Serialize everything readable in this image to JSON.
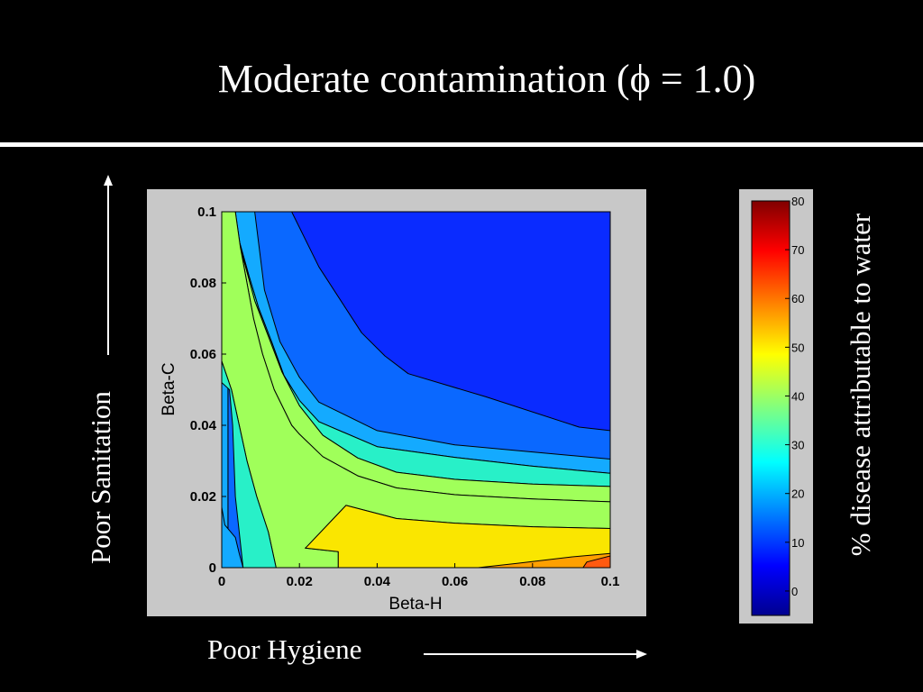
{
  "slide": {
    "title": "Moderate contamination (ϕ = 1.0)"
  },
  "y_axis_caption": "Poor Sanitation",
  "x_axis_caption": "Poor Hygiene",
  "colorbar_caption": "% disease attributable to water",
  "chart_data": {
    "type": "contour",
    "xlabel": "Beta-H",
    "ylabel": "Beta-C",
    "xlim": [
      0,
      0.1
    ],
    "ylim": [
      0,
      0.1
    ],
    "xticks": [
      "0",
      "0.02",
      "0.04",
      "0.06",
      "0.08",
      "0.1"
    ],
    "yticks": [
      "0",
      "0.02",
      "0.04",
      "0.06",
      "0.08",
      "0.1"
    ],
    "colorbar": {
      "min": -5,
      "max": 80,
      "ticks": [
        "0",
        "10",
        "20",
        "30",
        "40",
        "50",
        "60",
        "70",
        "80"
      ]
    },
    "colors": {
      "level_0_5": "#0a2bff",
      "level_5_10": "#0a68ff",
      "level_10_20": "#14aaff",
      "level_20_30": "#28f0c8",
      "level_30_40": "#a0ff5a",
      "level_40_50": "#fae600",
      "level_50_60": "#ffa000",
      "level_60_70": "#ff5a10",
      "axes_frame": "#c8c8c8"
    },
    "regions": [
      {
        "name": "level-5-10",
        "fill": "level_5_10",
        "points": [
          [
            0.0016,
            0.1
          ],
          [
            0.1,
            0.1
          ],
          [
            0.1,
            0.0
          ],
          [
            0.0016,
            0.0
          ]
        ]
      },
      {
        "name": "level-10-20",
        "fill": "level_10_20",
        "points": [
          [
            0.0,
            0.1
          ],
          [
            0.0016,
            0.1
          ],
          [
            0.0016,
            0.0
          ],
          [
            0.0,
            0.0
          ]
        ]
      },
      {
        "name": "level-0-5",
        "fill": "level_0_5",
        "points": [
          [
            0.018,
            0.1
          ],
          [
            0.1,
            0.1
          ],
          [
            0.1,
            0.0385
          ],
          [
            0.092,
            0.0395
          ],
          [
            0.068,
            0.048
          ],
          [
            0.048,
            0.0545
          ],
          [
            0.042,
            0.0595
          ],
          [
            0.036,
            0.066
          ],
          [
            0.025,
            0.0845
          ]
        ]
      },
      {
        "name": "level-10-20",
        "fill": "level_10_20",
        "points": [
          [
            0.0085,
            0.1
          ],
          [
            0.0018,
            0.1
          ],
          [
            0.0042,
            0.093
          ],
          [
            0.007,
            0.082
          ],
          [
            0.0095,
            0.073
          ],
          [
            0.013,
            0.063
          ],
          [
            0.016,
            0.054
          ],
          [
            0.02,
            0.047
          ],
          [
            0.025,
            0.041
          ],
          [
            0.04,
            0.034
          ],
          [
            0.06,
            0.031
          ],
          [
            0.08,
            0.0285
          ],
          [
            0.1,
            0.0265
          ],
          [
            0.1,
            0.0305
          ],
          [
            0.08,
            0.0325
          ],
          [
            0.06,
            0.0345
          ],
          [
            0.04,
            0.0385
          ],
          [
            0.025,
            0.0465
          ],
          [
            0.02,
            0.0535
          ],
          [
            0.015,
            0.0635
          ],
          [
            0.011,
            0.078
          ]
        ]
      },
      {
        "name": "level-20-30",
        "fill": "level_20_30",
        "points": [
          [
            0.0018,
            0.1
          ],
          [
            0.0035,
            0.1
          ],
          [
            0.004,
            0.093
          ],
          [
            0.006,
            0.085
          ],
          [
            0.0085,
            0.075
          ],
          [
            0.012,
            0.065
          ],
          [
            0.0155,
            0.055
          ],
          [
            0.02,
            0.0455
          ],
          [
            0.026,
            0.0372
          ],
          [
            0.035,
            0.0308
          ],
          [
            0.045,
            0.0268
          ],
          [
            0.06,
            0.0248
          ],
          [
            0.08,
            0.0235
          ],
          [
            0.1,
            0.0228
          ],
          [
            0.1,
            0.0265
          ],
          [
            0.08,
            0.0285
          ],
          [
            0.06,
            0.031
          ],
          [
            0.04,
            0.034
          ],
          [
            0.025,
            0.041
          ],
          [
            0.02,
            0.047
          ],
          [
            0.016,
            0.054
          ],
          [
            0.013,
            0.063
          ],
          [
            0.0095,
            0.073
          ],
          [
            0.007,
            0.082
          ],
          [
            0.0042,
            0.093
          ]
        ]
      },
      {
        "name": "level-30-40",
        "fill": "level_30_40",
        "points": [
          [
            0.0035,
            0.1
          ],
          [
            0.0048,
            0.09
          ],
          [
            0.0065,
            0.08
          ],
          [
            0.0082,
            0.07
          ],
          [
            0.0105,
            0.06
          ],
          [
            0.0135,
            0.05
          ],
          [
            0.018,
            0.04
          ],
          [
            0.02,
            0.0375
          ],
          [
            0.026,
            0.0312
          ],
          [
            0.035,
            0.0258
          ],
          [
            0.045,
            0.0224
          ],
          [
            0.06,
            0.0205
          ],
          [
            0.08,
            0.0193
          ],
          [
            0.1,
            0.0185
          ],
          [
            0.1,
            0.0228
          ],
          [
            0.08,
            0.0235
          ],
          [
            0.06,
            0.0248
          ],
          [
            0.045,
            0.0268
          ],
          [
            0.035,
            0.0308
          ],
          [
            0.026,
            0.0372
          ],
          [
            0.02,
            0.0455
          ],
          [
            0.0155,
            0.055
          ],
          [
            0.012,
            0.065
          ],
          [
            0.0085,
            0.075
          ],
          [
            0.006,
            0.085
          ],
          [
            0.004,
            0.093
          ]
        ]
      },
      {
        "name": "level-30-40",
        "fill": "level_30_40",
        "points": [
          [
            0.0,
            0.058
          ],
          [
            0.0025,
            0.05
          ],
          [
            0.0045,
            0.04
          ],
          [
            0.0065,
            0.03
          ],
          [
            0.009,
            0.02
          ],
          [
            0.012,
            0.01
          ],
          [
            0.014,
            0.0
          ],
          [
            0.03,
            0.0
          ],
          [
            0.03,
            0.0045
          ],
          [
            0.0215,
            0.0055
          ],
          [
            0.022,
            0.006
          ],
          [
            0.032,
            0.0175
          ],
          [
            0.045,
            0.0138
          ],
          [
            0.06,
            0.0125
          ],
          [
            0.08,
            0.0115
          ],
          [
            0.1,
            0.011
          ],
          [
            0.1,
            0.0185
          ],
          [
            0.08,
            0.0193
          ],
          [
            0.06,
            0.0205
          ],
          [
            0.045,
            0.0224
          ],
          [
            0.035,
            0.0258
          ],
          [
            0.026,
            0.0312
          ],
          [
            0.02,
            0.0375
          ],
          [
            0.018,
            0.04
          ],
          [
            0.0135,
            0.05
          ],
          [
            0.0105,
            0.06
          ],
          [
            0.0082,
            0.07
          ],
          [
            0.0065,
            0.08
          ],
          [
            0.0048,
            0.09
          ],
          [
            0.0035,
            0.1
          ],
          [
            0.0,
            0.1
          ]
        ]
      },
      {
        "name": "level-20-30",
        "fill": "level_20_30",
        "points": [
          [
            0.0,
            0.058
          ],
          [
            0.0025,
            0.05
          ],
          [
            0.0045,
            0.04
          ],
          [
            0.0065,
            0.03
          ],
          [
            0.009,
            0.02
          ],
          [
            0.012,
            0.01
          ],
          [
            0.014,
            0.0
          ],
          [
            0.0055,
            0.0
          ],
          [
            0.0035,
            0.02
          ],
          [
            0.0028,
            0.04
          ],
          [
            0.002,
            0.05
          ],
          [
            0.0,
            0.052
          ]
        ]
      },
      {
        "name": "level-10-20",
        "fill": "level_10_20",
        "points": [
          [
            0.0,
            0.017
          ],
          [
            0.0008,
            0.012
          ],
          [
            0.0035,
            0.0085
          ],
          [
            0.0045,
            0.004
          ],
          [
            0.0055,
            0.0
          ],
          [
            0.0,
            0.0
          ]
        ]
      },
      {
        "name": "level-40-50",
        "fill": "level_40_50",
        "points": [
          [
            0.0215,
            0.0055
          ],
          [
            0.03,
            0.0045
          ],
          [
            0.03,
            0.0
          ],
          [
            0.1,
            0.0
          ],
          [
            0.1,
            0.011
          ],
          [
            0.08,
            0.0115
          ],
          [
            0.06,
            0.0125
          ],
          [
            0.045,
            0.0138
          ],
          [
            0.032,
            0.0175
          ],
          [
            0.022,
            0.006
          ]
        ]
      },
      {
        "name": "level-50-60",
        "fill": "level_50_60",
        "points": [
          [
            0.066,
            0.0
          ],
          [
            0.1,
            0.0
          ],
          [
            0.1,
            0.004
          ],
          [
            0.09,
            0.003
          ],
          [
            0.076,
            0.0012
          ]
        ]
      },
      {
        "name": "level-60-70",
        "fill": "level_60_70",
        "points": [
          [
            0.093,
            0.0
          ],
          [
            0.1,
            0.0
          ],
          [
            0.1,
            0.0033
          ],
          [
            0.094,
            0.0016
          ]
        ]
      }
    ]
  }
}
